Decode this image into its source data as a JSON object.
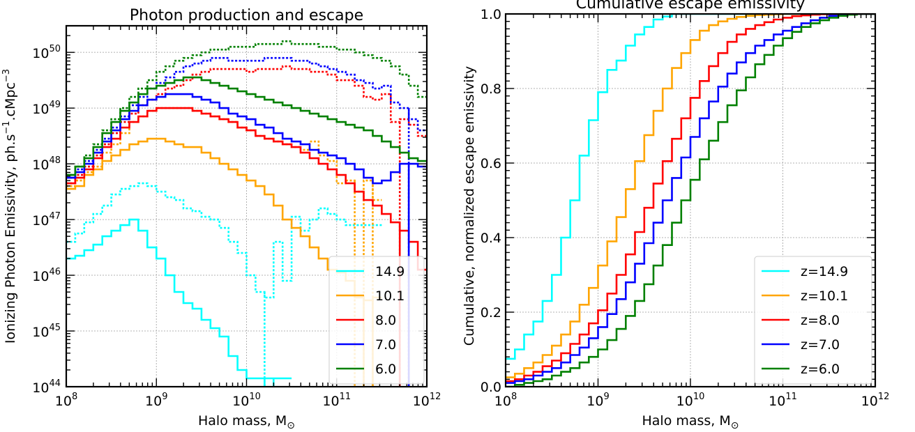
{
  "chart_data": [
    {
      "type": "line",
      "title": "Photon production and escape",
      "xlabel": "Halo mass, M",
      "xlabel_sub": "⊙",
      "ylabel": "Ionizing Photon Emissivity, ph.s",
      "ylabel_exp1": "−1",
      "ylabel_mid": ".cMpc",
      "ylabel_exp2": "−3",
      "xscale": "log",
      "yscale": "log",
      "xlim": [
        100000000,
        1000000000000
      ],
      "ylim": [
        100000000000000000000000000000000000000000000,
        300000000000000000000000000000000000000000000000000
      ],
      "x_ticks": [
        {
          "base": "10",
          "exp": "8"
        },
        {
          "base": "10",
          "exp": "9"
        },
        {
          "base": "10",
          "exp": "10"
        },
        {
          "base": "10",
          "exp": "11"
        },
        {
          "base": "10",
          "exp": "12"
        }
      ],
      "y_ticks": [
        {
          "base": "10",
          "exp": "44"
        },
        {
          "base": "10",
          "exp": "45"
        },
        {
          "base": "10",
          "exp": "46"
        },
        {
          "base": "10",
          "exp": "47"
        },
        {
          "base": "10",
          "exp": "48"
        },
        {
          "base": "10",
          "exp": "49"
        },
        {
          "base": "10",
          "exp": "50"
        }
      ],
      "grid": true,
      "legend_position": "bottom-right",
      "bin_edges_log10": [
        8.0,
        8.1,
        8.2,
        8.3,
        8.4,
        8.5,
        8.6,
        8.7,
        8.8,
        8.9,
        9.0,
        9.1,
        9.2,
        9.3,
        9.4,
        9.5,
        9.6,
        9.7,
        9.8,
        9.9,
        10.0,
        10.1,
        10.2,
        10.3,
        10.4,
        10.5,
        10.6,
        10.7,
        10.8,
        10.9,
        11.0,
        11.1,
        11.2,
        11.3,
        11.4,
        11.5,
        11.6,
        11.7,
        11.8,
        11.9,
        12.0
      ],
      "series": [
        {
          "name": "14.9",
          "color": "#00ffff",
          "style": "solid",
          "log10_values": [
            46.3,
            46.35,
            46.45,
            46.55,
            46.7,
            46.8,
            46.9,
            47.0,
            46.8,
            46.5,
            46.3,
            46.0,
            45.7,
            45.5,
            45.4,
            45.2,
            45.05,
            44.9,
            44.55,
            44.3,
            44.15,
            44.15,
            44.15,
            44.15,
            44.15,
            null,
            null,
            null,
            null,
            null,
            null,
            null,
            null,
            null,
            null,
            null,
            null,
            null,
            null,
            null
          ],
          "drops": [
            10.15,
            10.2,
            10.25,
            10.3
          ]
        },
        {
          "name": "14.9",
          "color": "#00ffff",
          "style": "dotted",
          "legend": false,
          "log10_values": [
            46.6,
            46.75,
            46.95,
            47.1,
            47.25,
            47.45,
            47.55,
            47.6,
            47.65,
            47.6,
            47.5,
            47.4,
            47.35,
            47.2,
            47.15,
            47.05,
            47.0,
            46.85,
            46.6,
            46.4,
            46.0,
            45.7,
            45.6,
            46.6,
            45.9,
            47.05,
            46.8,
            47.0,
            47.2,
            47.1,
            47.0,
            46.9,
            46.9,
            46.9,
            46.9,
            null,
            null,
            null,
            null,
            null
          ],
          "drops": [
            10.2,
            10.25
          ]
        },
        {
          "name": "10.1",
          "color": "#ffa500",
          "style": "solid",
          "log10_values": [
            47.55,
            47.6,
            47.8,
            47.9,
            48.05,
            48.15,
            48.25,
            48.35,
            48.4,
            48.45,
            48.45,
            48.4,
            48.35,
            48.3,
            48.3,
            48.2,
            48.1,
            48.0,
            47.9,
            47.8,
            47.7,
            47.6,
            47.45,
            47.25,
            47.0,
            46.85,
            46.7,
            46.5,
            46.3,
            46.1,
            46.05,
            45.9,
            45.6,
            45.55,
            45.6,
            null,
            null,
            null,
            null,
            null
          ],
          "drops": [
            11.3,
            11.4
          ]
        },
        {
          "name": "10.1",
          "color": "#ffa500",
          "style": "dotted",
          "legend": false,
          "log10_values": [
            47.6,
            47.7,
            47.85,
            47.95,
            48.2,
            48.35,
            48.55,
            48.75,
            48.85,
            48.95,
            49.0,
            49.0,
            49.0,
            49.0,
            48.95,
            48.9,
            48.85,
            48.8,
            48.75,
            48.65,
            48.6,
            48.5,
            48.45,
            48.4,
            48.35,
            48.3,
            48.25,
            48.4,
            48.15,
            48.05,
            47.65,
            47.7,
            47.5,
            47.7,
            47.35,
            null,
            null,
            null,
            null,
            null
          ],
          "drops": [
            11.2,
            11.3,
            11.4
          ]
        },
        {
          "name": "8.0",
          "color": "#ff0000",
          "style": "solid",
          "log10_values": [
            47.65,
            47.75,
            47.9,
            48.1,
            48.3,
            48.45,
            48.65,
            48.75,
            48.85,
            48.95,
            49.0,
            49.0,
            49.0,
            49.0,
            48.95,
            48.9,
            48.85,
            48.8,
            48.75,
            48.65,
            48.6,
            48.5,
            48.45,
            48.4,
            48.35,
            48.3,
            48.2,
            48.1,
            48.0,
            47.9,
            47.8,
            47.65,
            47.5,
            47.35,
            47.25,
            47.1,
            46.95,
            46.8,
            46.6,
            46.1
          ],
          "drops": [
            11.7
          ]
        },
        {
          "name": "8.0",
          "color": "#ff0000",
          "style": "dotted",
          "legend": false,
          "log10_values": [
            47.65,
            47.8,
            47.95,
            48.15,
            48.35,
            48.55,
            48.75,
            48.9,
            49.05,
            49.15,
            49.25,
            49.35,
            49.4,
            49.5,
            49.6,
            49.65,
            49.7,
            49.7,
            49.7,
            49.7,
            49.65,
            49.7,
            49.7,
            49.7,
            49.75,
            49.7,
            49.7,
            49.65,
            49.65,
            49.6,
            49.5,
            49.5,
            49.4,
            49.2,
            49.15,
            49.25,
            48.75,
            48.8,
            48.7,
            48.5
          ],
          "drops": [
            11.7
          ]
        },
        {
          "name": "7.0",
          "color": "#0000ff",
          "style": "solid",
          "log10_values": [
            47.75,
            47.85,
            48.0,
            48.2,
            48.4,
            48.6,
            48.8,
            48.95,
            49.05,
            49.15,
            49.2,
            49.25,
            49.25,
            49.25,
            49.2,
            49.15,
            49.1,
            49.0,
            48.9,
            48.85,
            48.8,
            48.7,
            48.65,
            48.55,
            48.45,
            48.4,
            48.35,
            48.25,
            48.2,
            48.15,
            48.1,
            48.0,
            47.9,
            47.75,
            47.65,
            47.7,
            47.85,
            48.0,
            48.0,
            47.95
          ],
          "drops": [
            11.8
          ]
        },
        {
          "name": "7.0",
          "color": "#0000ff",
          "style": "dotted",
          "legend": false,
          "log10_values": [
            47.75,
            47.9,
            48.05,
            48.25,
            48.45,
            48.65,
            48.85,
            49.05,
            49.2,
            49.35,
            49.45,
            49.55,
            49.65,
            49.75,
            49.8,
            49.85,
            49.9,
            49.9,
            49.85,
            49.85,
            49.85,
            49.85,
            49.9,
            49.9,
            49.9,
            49.85,
            49.85,
            49.8,
            49.75,
            49.7,
            49.65,
            49.6,
            49.5,
            49.45,
            49.35,
            49.4,
            49.1,
            49.0,
            48.8,
            48.6
          ],
          "drops": [
            11.8
          ]
        },
        {
          "name": "6.0",
          "color": "#008000",
          "style": "solid",
          "log10_values": [
            47.8,
            47.95,
            48.1,
            48.3,
            48.55,
            48.75,
            48.95,
            49.1,
            49.25,
            49.35,
            49.4,
            49.45,
            49.5,
            49.55,
            49.55,
            49.5,
            49.45,
            49.4,
            49.35,
            49.3,
            49.25,
            49.2,
            49.15,
            49.1,
            49.05,
            49.0,
            48.95,
            48.9,
            48.85,
            48.8,
            48.75,
            48.7,
            48.65,
            48.6,
            48.5,
            48.4,
            48.3,
            48.2,
            48.1,
            48.05
          ]
        },
        {
          "name": "6.0",
          "color": "#008000",
          "style": "dotted",
          "legend": false,
          "log10_values": [
            47.8,
            47.95,
            48.15,
            48.35,
            48.6,
            48.8,
            49.0,
            49.2,
            49.35,
            49.5,
            49.65,
            49.75,
            49.85,
            49.9,
            49.95,
            50.0,
            50.05,
            50.05,
            50.1,
            50.1,
            50.1,
            50.15,
            50.15,
            50.15,
            50.2,
            50.15,
            50.15,
            50.15,
            50.1,
            50.1,
            50.05,
            50.05,
            50.0,
            49.95,
            49.9,
            49.85,
            49.75,
            49.6,
            49.4,
            49.2
          ]
        }
      ]
    },
    {
      "type": "line",
      "title": "Cumulative escape emissivity",
      "xlabel": "Halo mass, M",
      "xlabel_sub": "⊙",
      "ylabel": "Cumulative, normalized escape emissivity",
      "xscale": "log",
      "xlim": [
        100000000,
        1000000000000
      ],
      "ylim": [
        0.0,
        1.0
      ],
      "x_ticks": [
        {
          "base": "10",
          "exp": "8"
        },
        {
          "base": "10",
          "exp": "9"
        },
        {
          "base": "10",
          "exp": "10"
        },
        {
          "base": "10",
          "exp": "11"
        },
        {
          "base": "10",
          "exp": "12"
        }
      ],
      "y_ticks": [
        "0.0",
        "0.2",
        "0.4",
        "0.6",
        "0.8",
        "1.0"
      ],
      "grid": true,
      "legend_position": "bottom-right",
      "bin_edges_log10": [
        8.0,
        8.1,
        8.2,
        8.3,
        8.4,
        8.5,
        8.6,
        8.7,
        8.8,
        8.9,
        9.0,
        9.1,
        9.2,
        9.3,
        9.4,
        9.5,
        9.6,
        9.7,
        9.8,
        9.9,
        10.0,
        10.1,
        10.2,
        10.3,
        10.4,
        10.5,
        10.6,
        10.7,
        10.8,
        10.9,
        11.0,
        11.1,
        11.2,
        11.3,
        11.4,
        11.5,
        11.6,
        11.7,
        11.8,
        11.9,
        12.0
      ],
      "series": [
        {
          "name": "z=14.9",
          "color": "#00ffff",
          "style": "solid",
          "values": [
            0.075,
            0.1,
            0.14,
            0.175,
            0.23,
            0.3,
            0.4,
            0.5,
            0.62,
            0.715,
            0.79,
            0.85,
            0.875,
            0.915,
            0.945,
            0.965,
            0.985,
            0.993,
            1.0,
            1.0,
            1.0,
            1.0,
            1.0,
            1.0,
            1.0,
            1.0,
            1.0,
            1.0,
            1.0,
            1.0,
            1.0,
            1.0,
            1.0,
            1.0,
            1.0,
            1.0,
            1.0,
            1.0,
            1.0,
            1.0
          ]
        },
        {
          "name": "z=10.1",
          "color": "#ffa500",
          "style": "solid",
          "values": [
            0.025,
            0.035,
            0.05,
            0.065,
            0.085,
            0.11,
            0.14,
            0.175,
            0.22,
            0.265,
            0.325,
            0.39,
            0.455,
            0.53,
            0.605,
            0.675,
            0.74,
            0.8,
            0.855,
            0.895,
            0.93,
            0.955,
            0.97,
            0.98,
            0.987,
            0.992,
            0.995,
            0.997,
            0.998,
            0.999,
            1.0,
            1.0,
            1.0,
            1.0,
            1.0,
            1.0,
            1.0,
            1.0,
            1.0,
            1.0
          ]
        },
        {
          "name": "z=8.0",
          "color": "#ff0000",
          "style": "solid",
          "values": [
            0.015,
            0.02,
            0.03,
            0.04,
            0.055,
            0.07,
            0.09,
            0.115,
            0.14,
            0.17,
            0.205,
            0.25,
            0.3,
            0.355,
            0.415,
            0.48,
            0.545,
            0.605,
            0.665,
            0.72,
            0.775,
            0.82,
            0.86,
            0.895,
            0.925,
            0.945,
            0.96,
            0.97,
            0.978,
            0.985,
            0.99,
            0.994,
            0.996,
            0.998,
            0.999,
            1.0,
            1.0,
            1.0,
            1.0,
            1.0
          ]
        },
        {
          "name": "z=7.0",
          "color": "#0000ff",
          "style": "solid",
          "values": [
            0.01,
            0.015,
            0.02,
            0.03,
            0.04,
            0.05,
            0.065,
            0.085,
            0.105,
            0.13,
            0.16,
            0.195,
            0.235,
            0.28,
            0.33,
            0.385,
            0.44,
            0.5,
            0.56,
            0.615,
            0.67,
            0.72,
            0.765,
            0.805,
            0.84,
            0.87,
            0.895,
            0.915,
            0.93,
            0.945,
            0.955,
            0.965,
            0.975,
            0.983,
            0.99,
            0.995,
            0.998,
            1.0,
            1.0,
            1.0
          ]
        },
        {
          "name": "z=6.0",
          "color": "#008000",
          "style": "solid",
          "values": [
            0.0,
            0.005,
            0.01,
            0.015,
            0.02,
            0.03,
            0.04,
            0.05,
            0.065,
            0.08,
            0.1,
            0.125,
            0.155,
            0.19,
            0.23,
            0.275,
            0.325,
            0.38,
            0.44,
            0.5,
            0.555,
            0.61,
            0.66,
            0.71,
            0.755,
            0.795,
            0.83,
            0.865,
            0.89,
            0.915,
            0.935,
            0.952,
            0.965,
            0.975,
            0.983,
            0.99,
            0.995,
            0.998,
            1.0,
            1.0
          ]
        }
      ]
    }
  ]
}
